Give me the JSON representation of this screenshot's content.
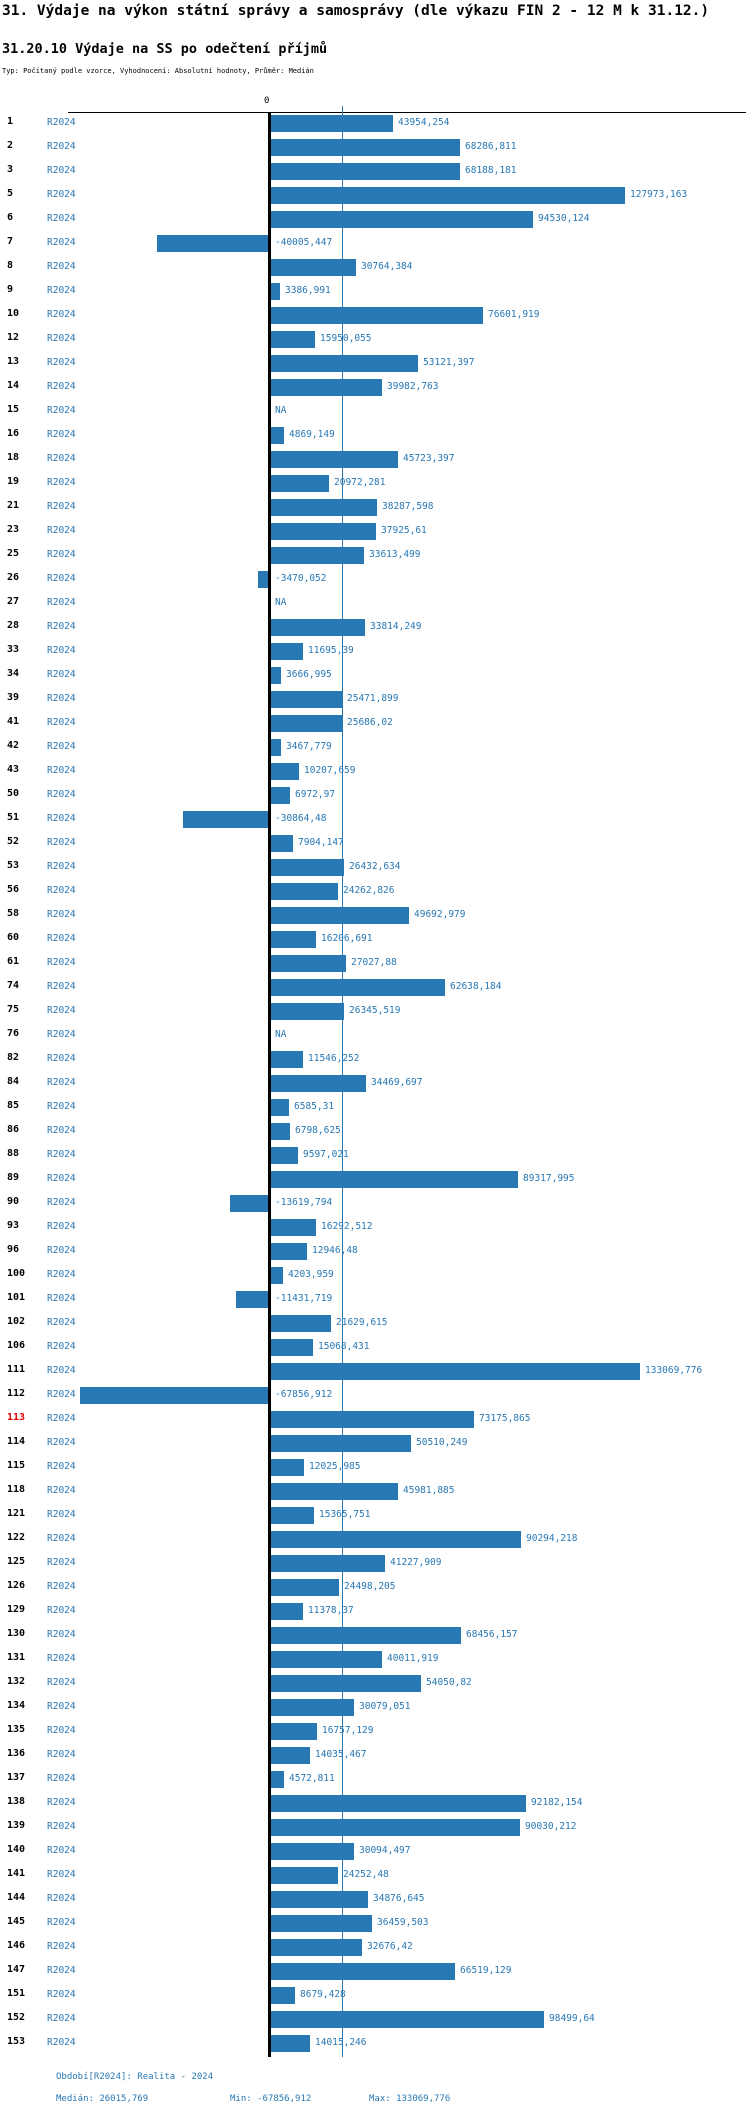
{
  "title": "31. Výdaje na výkon státní správy a samosprávy (dle výkazu FIN 2 - 12 M k 31.12.)",
  "subtitle": "31.20.10 Výdaje na SS po odečtení příjmů",
  "meta": "Typ: Počítaný podle vzorce, Vyhodnocení: Absolutní hodnoty, Průměr: Medián",
  "axis": {
    "zero_label": "0"
  },
  "footer": {
    "period": "Období[R2024]: Realita - 2024",
    "median": "Medián: 26015,769",
    "min": "Min: -67856,912",
    "max": "Max: 133069,776"
  },
  "colors": {
    "bar": "#2878b4",
    "text_blue": "#2878b4",
    "highlight_row": "#e00000"
  },
  "chart_data": {
    "type": "bar",
    "orientation": "horizontal",
    "series_label": "R2024",
    "na_label": "NA",
    "median": 26015.769,
    "min": -67856.912,
    "max": 133069.776,
    "value_axis_zero": 0,
    "rows": [
      {
        "id": "1",
        "label": "43954,254",
        "value": 43954.254
      },
      {
        "id": "2",
        "label": "68286,811",
        "value": 68286.811
      },
      {
        "id": "3",
        "label": "68188,181",
        "value": 68188.181
      },
      {
        "id": "5",
        "label": "127973,163",
        "value": 127973.163
      },
      {
        "id": "6",
        "label": "94530,124",
        "value": 94530.124
      },
      {
        "id": "7",
        "label": "-40005,447",
        "value": -40005.447
      },
      {
        "id": "8",
        "label": "30764,384",
        "value": 30764.384
      },
      {
        "id": "9",
        "label": "3386,991",
        "value": 3386.991
      },
      {
        "id": "10",
        "label": "76601,919",
        "value": 76601.919
      },
      {
        "id": "12",
        "label": "15950,055",
        "value": 15950.055
      },
      {
        "id": "13",
        "label": "53121,397",
        "value": 53121.397
      },
      {
        "id": "14",
        "label": "39982,763",
        "value": 39982.763
      },
      {
        "id": "15",
        "label": "NA",
        "value": null
      },
      {
        "id": "16",
        "label": "4869,149",
        "value": 4869.149
      },
      {
        "id": "18",
        "label": "45723,397",
        "value": 45723.397
      },
      {
        "id": "19",
        "label": "20972,281",
        "value": 20972.281
      },
      {
        "id": "21",
        "label": "38287,598",
        "value": 38287.598
      },
      {
        "id": "23",
        "label": "37925,61",
        "value": 37925.61
      },
      {
        "id": "25",
        "label": "33613,499",
        "value": 33613.499
      },
      {
        "id": "26",
        "label": "-3470,052",
        "value": -3470.052
      },
      {
        "id": "27",
        "label": "NA",
        "value": null
      },
      {
        "id": "28",
        "label": "33814,249",
        "value": 33814.249
      },
      {
        "id": "33",
        "label": "11695,39",
        "value": 11695.39
      },
      {
        "id": "34",
        "label": "3666,995",
        "value": 3666.995
      },
      {
        "id": "39",
        "label": "25471,899",
        "value": 25471.899
      },
      {
        "id": "41",
        "label": "25686,02",
        "value": 25686.02
      },
      {
        "id": "42",
        "label": "3467,779",
        "value": 3467.779
      },
      {
        "id": "43",
        "label": "10207,659",
        "value": 10207.659
      },
      {
        "id": "50",
        "label": "6972,97",
        "value": 6972.97
      },
      {
        "id": "51",
        "label": "-30864,48",
        "value": -30864.48
      },
      {
        "id": "52",
        "label": "7904,147",
        "value": 7904.147
      },
      {
        "id": "53",
        "label": "26432,634",
        "value": 26432.634
      },
      {
        "id": "56",
        "label": "24262,826",
        "value": 24262.826
      },
      {
        "id": "58",
        "label": "49692,979",
        "value": 49692.979
      },
      {
        "id": "60",
        "label": "16206,691",
        "value": 16206.691
      },
      {
        "id": "61",
        "label": "27027,88",
        "value": 27027.88
      },
      {
        "id": "74",
        "label": "62638,184",
        "value": 62638.184
      },
      {
        "id": "75",
        "label": "26345,519",
        "value": 26345.519
      },
      {
        "id": "76",
        "label": "NA",
        "value": null
      },
      {
        "id": "82",
        "label": "11546,252",
        "value": 11546.252
      },
      {
        "id": "84",
        "label": "34469,697",
        "value": 34469.697
      },
      {
        "id": "85",
        "label": "6585,31",
        "value": 6585.31
      },
      {
        "id": "86",
        "label": "6798,625",
        "value": 6798.625
      },
      {
        "id": "88",
        "label": "9597,021",
        "value": 9597.021
      },
      {
        "id": "89",
        "label": "89317,995",
        "value": 89317.995
      },
      {
        "id": "90",
        "label": "-13619,794",
        "value": -13619.794
      },
      {
        "id": "93",
        "label": "16292,512",
        "value": 16292.512
      },
      {
        "id": "96",
        "label": "12946,48",
        "value": 12946.48
      },
      {
        "id": "100",
        "label": "4203,959",
        "value": 4203.959
      },
      {
        "id": "101",
        "label": "-11431,719",
        "value": -11431.719
      },
      {
        "id": "102",
        "label": "21629,615",
        "value": 21629.615
      },
      {
        "id": "106",
        "label": "15068,431",
        "value": 15068.431
      },
      {
        "id": "111",
        "label": "133069,776",
        "value": 133069.776
      },
      {
        "id": "112",
        "label": "-67856,912",
        "value": -67856.912
      },
      {
        "id": "113",
        "label": "73175,865",
        "value": 73175.865,
        "hl": true
      },
      {
        "id": "114",
        "label": "50510,249",
        "value": 50510.249
      },
      {
        "id": "115",
        "label": "12025,985",
        "value": 12025.985
      },
      {
        "id": "118",
        "label": "45981,885",
        "value": 45981.885
      },
      {
        "id": "121",
        "label": "15365,751",
        "value": 15365.751
      },
      {
        "id": "122",
        "label": "90294,218",
        "value": 90294.218
      },
      {
        "id": "125",
        "label": "41227,909",
        "value": 41227.909
      },
      {
        "id": "126",
        "label": "24498,205",
        "value": 24498.205
      },
      {
        "id": "129",
        "label": "11378,37",
        "value": 11378.37
      },
      {
        "id": "130",
        "label": "68456,157",
        "value": 68456.157
      },
      {
        "id": "131",
        "label": "40011,919",
        "value": 40011.919
      },
      {
        "id": "132",
        "label": "54050,82",
        "value": 54050.82
      },
      {
        "id": "134",
        "label": "30079,051",
        "value": 30079.051
      },
      {
        "id": "135",
        "label": "16757,129",
        "value": 16757.129
      },
      {
        "id": "136",
        "label": "14035,467",
        "value": 14035.467
      },
      {
        "id": "137",
        "label": "4572,811",
        "value": 4572.811
      },
      {
        "id": "138",
        "label": "92182,154",
        "value": 92182.154
      },
      {
        "id": "139",
        "label": "90030,212",
        "value": 90030.212
      },
      {
        "id": "140",
        "label": "30094,497",
        "value": 30094.497
      },
      {
        "id": "141",
        "label": "24252,48",
        "value": 24252.48
      },
      {
        "id": "144",
        "label": "34876,645",
        "value": 34876.645
      },
      {
        "id": "145",
        "label": "36459,503",
        "value": 36459.503
      },
      {
        "id": "146",
        "label": "32676,42",
        "value": 32676.42
      },
      {
        "id": "147",
        "label": "66519,129",
        "value": 66519.129
      },
      {
        "id": "151",
        "label": "8679,428",
        "value": 8679.428
      },
      {
        "id": "152",
        "label": "98499,64",
        "value": 98499.64
      },
      {
        "id": "153",
        "label": "14015,246",
        "value": 14015.246
      }
    ]
  }
}
